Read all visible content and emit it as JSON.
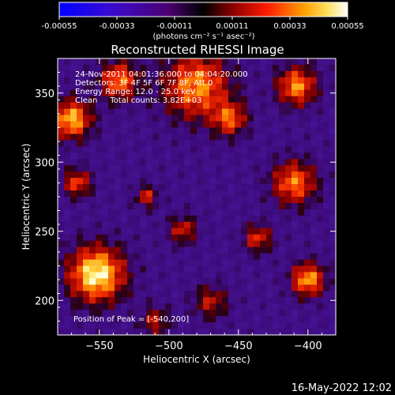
{
  "colorbar": {
    "tick_labels": [
      "-0.00055",
      "-0.00033",
      "-0.00011",
      "0.00011",
      "0.00033",
      "0.00055"
    ],
    "range": [
      -0.00055,
      0.00055
    ],
    "units_label": "(photons cm⁻² s⁻¹ asec⁻²)"
  },
  "chart_data": {
    "type": "heatmap",
    "title": "Reconstructed RHESSI Image",
    "xlabel": "Heliocentric X (arcsec)",
    "ylabel": "Heliocentric Y (arcsec)",
    "xlim": [
      -580,
      -380
    ],
    "ylim": [
      175,
      375
    ],
    "x_ticks": [
      -550,
      -500,
      -450,
      -400
    ],
    "y_ticks": [
      200,
      250,
      300,
      350
    ],
    "x_tick_labels": [
      "−550",
      "−500",
      "−450",
      "−400"
    ],
    "y_tick_labels": [
      "200",
      "250",
      "300",
      "350"
    ],
    "annotations": [
      "24-Nov-2011 04:01:36.000 to 04:04:20.000",
      "Detectors: 3F 4F 5F 6F 7F 8F, Att 0",
      "Energy Range: 12.0 - 25.0 keV",
      "Clean     Total counts: 3.82E+03"
    ],
    "peak_label": "Position of Peak = [-540,200]",
    "peak_position": [
      -540,
      200
    ]
  },
  "footer": {
    "timestamp": "16-May-2022 12:02"
  }
}
